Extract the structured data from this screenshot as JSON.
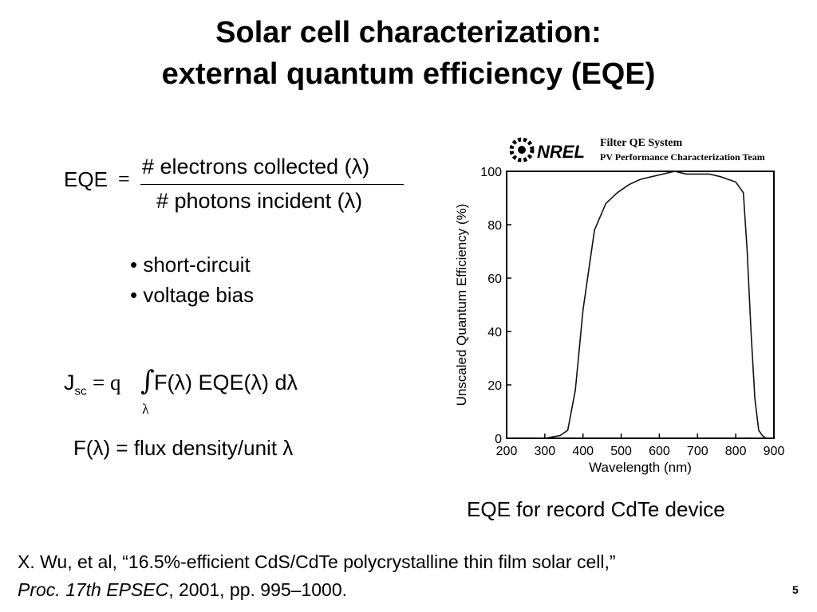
{
  "slide": {
    "title_line1": "Solar cell characterization:",
    "title_line2": "external quantum efficiency (EQE)",
    "page_number": "5"
  },
  "equations": {
    "eqe_lhs": "EQE",
    "eqe_equals": "=",
    "eqe_numerator": "# electrons collected (λ)",
    "eqe_denominator": "# photons incident (λ)",
    "jsc_symbol": "J",
    "jsc_sub": "sc",
    "jsc_prefix": "= q",
    "integral_symbol": "∫",
    "integral_sub": "λ",
    "jsc_integrand": "F(λ) EQE(λ) dλ",
    "flux_definition": "F(λ) = flux density/unit λ"
  },
  "bullets": [
    "• short-circuit",
    "• voltage bias"
  ],
  "figure": {
    "logo_text": "NREL",
    "header_line1": "Filter QE System",
    "header_line2": "PV Performance Characterization Team",
    "caption": "EQE for record CdTe device"
  },
  "reference": {
    "line1": "X. Wu, et al, “16.5%-efficient CdS/CdTe polycrystalline thin film solar cell,”",
    "line2_italic": "Proc. 17th EPSEC",
    "line2_rest": ", 2001, pp. 995–1000."
  },
  "chart_data": {
    "type": "line",
    "xlabel": "Wavelength (nm)",
    "ylabel": "Unscaled Quantum Efficiency (%)",
    "xlim": [
      200,
      900
    ],
    "ylim": [
      0,
      100
    ],
    "xticks": [
      200,
      300,
      400,
      500,
      600,
      700,
      800,
      900
    ],
    "yticks": [
      0,
      20,
      40,
      60,
      80,
      100
    ],
    "grid": false,
    "series": [
      {
        "x": [
          300,
          320,
          340,
          360,
          380,
          400,
          430,
          460,
          490,
          520,
          550,
          580,
          610,
          640,
          670,
          700,
          730,
          760,
          780,
          800,
          820,
          830,
          840,
          850,
          860,
          870,
          880
        ],
        "y": [
          0,
          0.5,
          1,
          3,
          18,
          48,
          78,
          88,
          92,
          95,
          97,
          98,
          99,
          100,
          99,
          99,
          99,
          98,
          97,
          96,
          92,
          70,
          40,
          15,
          3,
          1,
          0
        ]
      }
    ]
  }
}
